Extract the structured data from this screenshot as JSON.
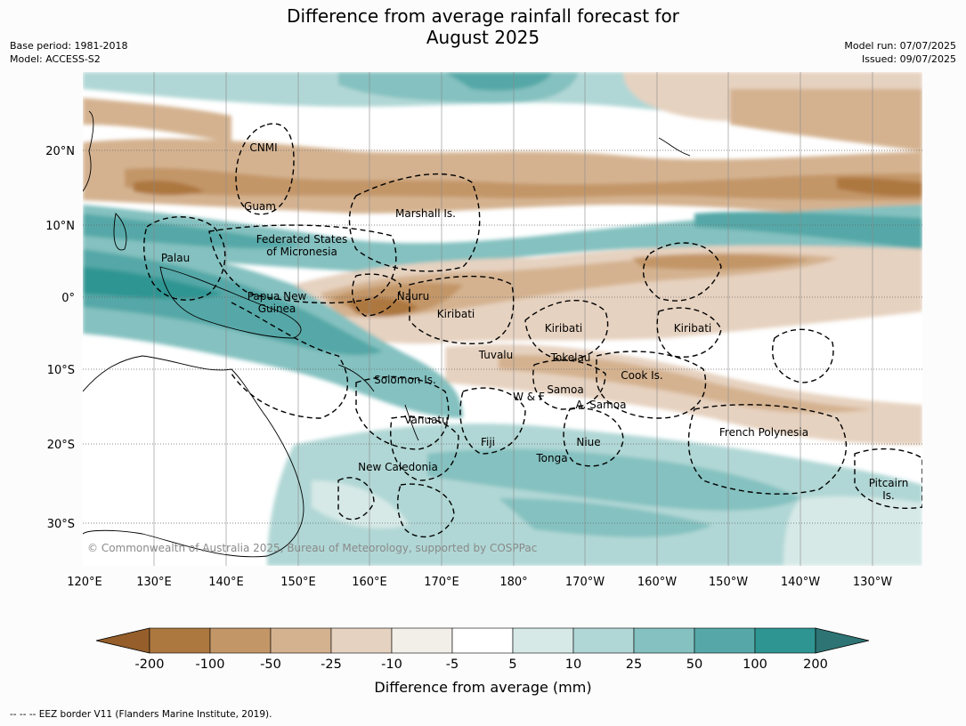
{
  "title_line1": "Difference from average rainfall forecast for",
  "title_line2": "August 2025",
  "meta_left": {
    "base_period": "Base period: 1981-2018",
    "model": "Model: ACCESS-S2"
  },
  "meta_right": {
    "model_run": "Model run: 07/07/2025",
    "issued": "Issued: 09/07/2025"
  },
  "credit": "© Commonwealth of Australia 2025, Bureau of Meteorology, supported by COSPPac",
  "eez_note": "--  --  -- EEZ border V11 (Flanders Marine Institute, 2019).",
  "colorbar": {
    "label": "Difference from average (mm)",
    "ticks": [
      "-200",
      "-100",
      "-50",
      "-25",
      "-10",
      "-5",
      "5",
      "10",
      "25",
      "50",
      "100",
      "200"
    ],
    "colors": [
      "#955e2a",
      "#ad7740",
      "#c39668",
      "#d4b290",
      "#e6d2c0",
      "#f2eee8",
      "#ffffff",
      "#d6e9e7",
      "#b0d7d5",
      "#84c1c0",
      "#55a8a7",
      "#2f9592",
      "#2e7474"
    ]
  },
  "map": {
    "lon_labels": [
      "120°E",
      "130°E",
      "140°E",
      "150°E",
      "160°E",
      "170°E",
      "180°",
      "170°W",
      "160°W",
      "150°W",
      "140°W",
      "130°W"
    ],
    "lat_labels": [
      "20°N",
      "10°N",
      "0°",
      "10°S",
      "20°S",
      "30°S"
    ],
    "places": [
      {
        "id": "cnmi",
        "text": "CNMI"
      },
      {
        "id": "guam",
        "text": "Guam"
      },
      {
        "id": "marshall",
        "text": "Marshall Is."
      },
      {
        "id": "fsm1",
        "text": "Federated States"
      },
      {
        "id": "fsm2",
        "text": "of Micronesia"
      },
      {
        "id": "palau",
        "text": "Palau"
      },
      {
        "id": "png1",
        "text": "Papua New"
      },
      {
        "id": "png2",
        "text": "Guinea"
      },
      {
        "id": "nauru",
        "text": "Nauru"
      },
      {
        "id": "kiribati_w",
        "text": "Kiribati"
      },
      {
        "id": "kiribati_c",
        "text": "Kiribati"
      },
      {
        "id": "kiribati_e",
        "text": "Kiribati"
      },
      {
        "id": "tuvalu",
        "text": "Tuvalu"
      },
      {
        "id": "tokelau",
        "text": "Tokelau"
      },
      {
        "id": "cook",
        "text": "Cook Is."
      },
      {
        "id": "solomon",
        "text": "Solomon Is."
      },
      {
        "id": "samoa",
        "text": "Samoa"
      },
      {
        "id": "wf",
        "text": "W & F"
      },
      {
        "id": "asamoa",
        "text": "A. Samoa"
      },
      {
        "id": "vanuatu",
        "text": "Vanuatu"
      },
      {
        "id": "fiji",
        "text": "Fiji"
      },
      {
        "id": "niue",
        "text": "Niue"
      },
      {
        "id": "tonga",
        "text": "Tonga"
      },
      {
        "id": "frpoly",
        "text": "French Polynesia"
      },
      {
        "id": "newcal",
        "text": "New Caledonia"
      },
      {
        "id": "pitcairn1",
        "text": "Pitcairn"
      },
      {
        "id": "pitcairn2",
        "text": "Is."
      }
    ]
  }
}
